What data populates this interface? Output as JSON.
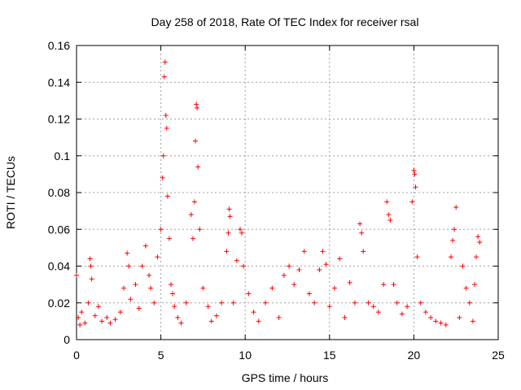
{
  "chart_data": {
    "type": "scatter",
    "title": "Day 258 of 2018, Rate Of TEC Index for receiver rsal",
    "xlabel": "GPS time / hours",
    "ylabel": "ROTI / TECUs",
    "xlim": [
      0,
      25
    ],
    "ylim": [
      0,
      0.16
    ],
    "xticks": [
      0,
      5,
      10,
      15,
      20,
      25
    ],
    "xtick_labels": [
      "0",
      "5",
      "10",
      "15",
      "20",
      "25"
    ],
    "yticks": [
      0,
      0.02,
      0.04,
      0.06,
      0.08,
      0.1,
      0.12,
      0.14,
      0.16
    ],
    "ytick_labels": [
      "0",
      "0.02",
      "0.04",
      "0.06",
      "0.08",
      "0.1",
      "0.12",
      "0.14",
      "0.16"
    ],
    "grid": true,
    "marker": "+",
    "color": "#ff0000",
    "series": [
      {
        "name": "ROTI",
        "x": [
          0.0,
          0.1,
          0.2,
          0.3,
          0.5,
          0.7,
          0.8,
          0.85,
          0.9,
          1.1,
          1.3,
          1.5,
          1.8,
          2.0,
          2.3,
          2.6,
          2.8,
          3.0,
          3.1,
          3.2,
          3.5,
          3.7,
          3.9,
          4.1,
          4.3,
          4.4,
          4.6,
          4.8,
          5.0,
          5.1,
          5.15,
          5.2,
          5.25,
          5.3,
          5.35,
          5.4,
          5.5,
          5.6,
          5.7,
          5.8,
          6.0,
          6.2,
          6.5,
          6.8,
          6.9,
          7.0,
          7.05,
          7.1,
          7.15,
          7.2,
          7.3,
          7.5,
          7.8,
          8.0,
          8.3,
          8.6,
          8.9,
          9.0,
          9.05,
          9.1,
          9.3,
          9.5,
          9.7,
          9.8,
          9.9,
          10.2,
          10.5,
          10.8,
          11.2,
          11.6,
          12.0,
          12.3,
          12.6,
          12.9,
          13.2,
          13.5,
          13.8,
          14.1,
          14.4,
          14.6,
          14.8,
          15.0,
          15.3,
          15.6,
          15.9,
          16.2,
          16.5,
          16.8,
          16.9,
          17.0,
          17.3,
          17.6,
          17.9,
          18.2,
          18.4,
          18.5,
          18.6,
          18.8,
          19.0,
          19.3,
          19.6,
          19.9,
          20.0,
          20.05,
          20.1,
          20.2,
          20.4,
          20.7,
          21.0,
          21.3,
          21.6,
          21.9,
          22.2,
          22.3,
          22.4,
          22.5,
          22.7,
          22.9,
          23.1,
          23.3,
          23.5,
          23.6,
          23.7,
          23.8,
          23.9
        ],
        "y": [
          0.035,
          0.012,
          0.008,
          0.015,
          0.009,
          0.02,
          0.044,
          0.04,
          0.033,
          0.013,
          0.018,
          0.01,
          0.012,
          0.009,
          0.011,
          0.015,
          0.028,
          0.047,
          0.04,
          0.022,
          0.03,
          0.017,
          0.04,
          0.051,
          0.035,
          0.028,
          0.02,
          0.045,
          0.06,
          0.088,
          0.1,
          0.143,
          0.151,
          0.122,
          0.115,
          0.078,
          0.055,
          0.03,
          0.025,
          0.018,
          0.012,
          0.009,
          0.02,
          0.068,
          0.055,
          0.075,
          0.108,
          0.128,
          0.126,
          0.094,
          0.06,
          0.028,
          0.018,
          0.01,
          0.013,
          0.02,
          0.048,
          0.058,
          0.071,
          0.067,
          0.02,
          0.043,
          0.06,
          0.058,
          0.04,
          0.025,
          0.015,
          0.01,
          0.02,
          0.028,
          0.012,
          0.035,
          0.04,
          0.03,
          0.038,
          0.048,
          0.025,
          0.02,
          0.038,
          0.048,
          0.041,
          0.018,
          0.028,
          0.044,
          0.012,
          0.031,
          0.02,
          0.063,
          0.058,
          0.048,
          0.02,
          0.018,
          0.015,
          0.03,
          0.075,
          0.068,
          0.065,
          0.03,
          0.02,
          0.014,
          0.018,
          0.075,
          0.092,
          0.09,
          0.083,
          0.045,
          0.02,
          0.015,
          0.012,
          0.01,
          0.009,
          0.008,
          0.045,
          0.054,
          0.06,
          0.072,
          0.012,
          0.04,
          0.028,
          0.02,
          0.01,
          0.03,
          0.045,
          0.056,
          0.053
        ]
      }
    ]
  }
}
